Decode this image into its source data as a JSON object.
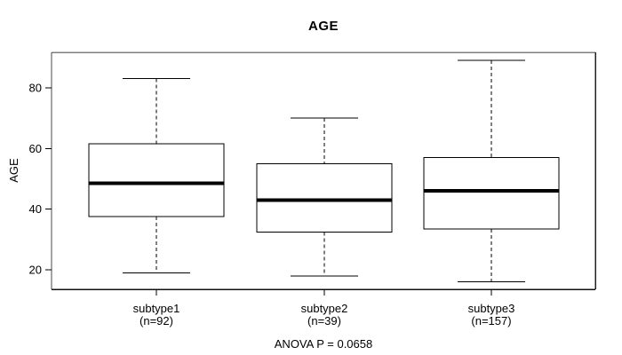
{
  "chart_data": {
    "type": "boxplot",
    "title": "AGE",
    "ylabel": "AGE",
    "xlabel": "",
    "ylim": [
      13,
      92
    ],
    "yticks": [
      20,
      40,
      60,
      80
    ],
    "grid": false,
    "legend": null,
    "annotation": "ANOVA P = 0.0658",
    "groups": [
      {
        "label": "subtype1",
        "sublabel": "(n=92)",
        "n": 92,
        "lower_whisker": 19,
        "q1": 37.5,
        "median": 48.5,
        "q3": 61.5,
        "upper_whisker": 83
      },
      {
        "label": "subtype2",
        "sublabel": "(n=39)",
        "n": 39,
        "lower_whisker": 18,
        "q1": 32.5,
        "median": 43,
        "q3": 55,
        "upper_whisker": 70
      },
      {
        "label": "subtype3",
        "sublabel": "(n=157)",
        "n": 157,
        "lower_whisker": 16,
        "q1": 33.5,
        "median": 46,
        "q3": 57,
        "upper_whisker": 89
      }
    ],
    "colors": {
      "stroke": "#000000",
      "median": "#000000",
      "box_fill": "#ffffff",
      "frame_top": "#7f7f7f",
      "frame_left": "#4a4a4a",
      "frame_bottom": "#111111",
      "frame_right": "#222222",
      "background": "#ffffff",
      "text": "#000000"
    }
  }
}
